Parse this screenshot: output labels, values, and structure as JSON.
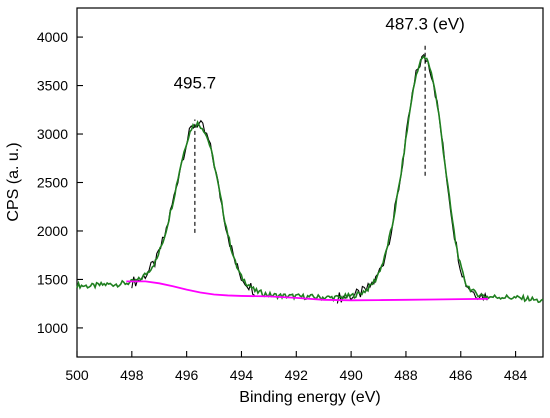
{
  "chart_data": {
    "type": "line",
    "xlabel": "Binding energy (eV)",
    "ylabel": "CPS (a. u.)",
    "xlim": [
      500,
      483
    ],
    "ylim": [
      700,
      4300
    ],
    "x_reversed": true,
    "xticks": [
      500,
      498,
      496,
      494,
      492,
      490,
      488,
      486,
      484
    ],
    "yticks": [
      1000,
      1500,
      2000,
      2500,
      3000,
      3500,
      4000
    ],
    "colors": {
      "raw": "#000000",
      "fit": "#1f7f1f",
      "background": "#ff00ff",
      "marker": "#000000"
    },
    "series": [
      {
        "key": "fit",
        "values": [
          [
            500,
            1440
          ],
          [
            499.5,
            1430
          ],
          [
            499,
            1448
          ],
          [
            498.5,
            1452
          ],
          [
            498,
            1470
          ],
          [
            497.7,
            1500
          ],
          [
            497.4,
            1580
          ],
          [
            497.1,
            1700
          ],
          [
            496.8,
            1950
          ],
          [
            496.5,
            2300
          ],
          [
            496.2,
            2700
          ],
          [
            496.0,
            2920
          ],
          [
            495.8,
            3080
          ],
          [
            495.6,
            3110
          ],
          [
            495.4,
            3060
          ],
          [
            495.2,
            2930
          ],
          [
            495.0,
            2700
          ],
          [
            494.8,
            2400
          ],
          [
            494.6,
            2100
          ],
          [
            494.4,
            1850
          ],
          [
            494.2,
            1650
          ],
          [
            494.0,
            1520
          ],
          [
            493.5,
            1380
          ],
          [
            493.0,
            1340
          ],
          [
            492.5,
            1330
          ],
          [
            492.0,
            1325
          ],
          [
            491.5,
            1320
          ],
          [
            491.0,
            1315
          ],
          [
            490.5,
            1312
          ],
          [
            490.0,
            1330
          ],
          [
            489.7,
            1350
          ],
          [
            489.4,
            1400
          ],
          [
            489.1,
            1500
          ],
          [
            488.8,
            1700
          ],
          [
            488.5,
            2050
          ],
          [
            488.2,
            2550
          ],
          [
            488.0,
            2950
          ],
          [
            487.8,
            3350
          ],
          [
            487.6,
            3650
          ],
          [
            487.4,
            3790
          ],
          [
            487.2,
            3760
          ],
          [
            487.0,
            3550
          ],
          [
            486.8,
            3200
          ],
          [
            486.6,
            2750
          ],
          [
            486.4,
            2300
          ],
          [
            486.2,
            1900
          ],
          [
            486.0,
            1620
          ],
          [
            485.8,
            1450
          ],
          [
            485.5,
            1360
          ],
          [
            485.0,
            1320
          ],
          [
            484.5,
            1320
          ],
          [
            484.0,
            1310
          ],
          [
            483.5,
            1300
          ],
          [
            483.0,
            1270
          ]
        ]
      },
      {
        "key": "background",
        "values": [
          [
            498.2,
            1480
          ],
          [
            497.5,
            1480
          ],
          [
            497.0,
            1460
          ],
          [
            496.5,
            1430
          ],
          [
            496.0,
            1395
          ],
          [
            495.5,
            1365
          ],
          [
            495.0,
            1345
          ],
          [
            494.5,
            1335
          ],
          [
            494.0,
            1330
          ],
          [
            493.0,
            1325
          ],
          [
            492.0,
            1310
          ],
          [
            491.0,
            1290
          ],
          [
            490.0,
            1285
          ],
          [
            489.0,
            1287
          ],
          [
            488.0,
            1290
          ],
          [
            487.0,
            1293
          ],
          [
            486.0,
            1297
          ],
          [
            485.0,
            1300
          ]
        ]
      }
    ],
    "raw_segments": [
      [
        498.2,
        493.3
      ],
      [
        490.8,
        485.0
      ]
    ],
    "peak_lines": [
      {
        "x": 495.7,
        "y_from": 1980,
        "y_to": 3150
      },
      {
        "x": 487.3,
        "y_from": 2570,
        "y_to": 3930
      }
    ],
    "annotations": [
      {
        "text": "495.7",
        "x": 495.7,
        "y": 3470
      },
      {
        "text": "487.3 (eV)",
        "x": 487.3,
        "y": 4080
      }
    ]
  }
}
